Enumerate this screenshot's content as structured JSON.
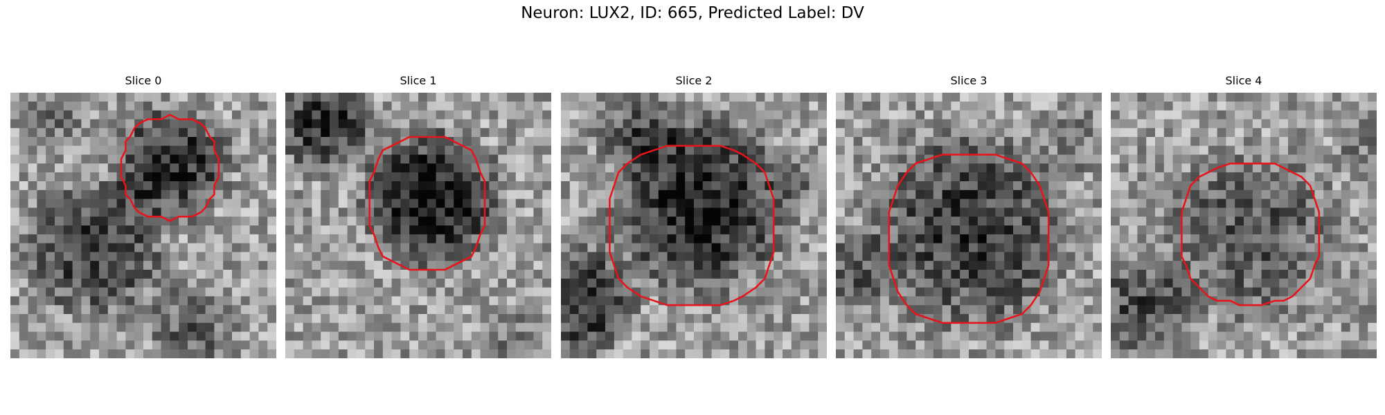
{
  "figure": {
    "title": "Neuron: LUX2, ID: 665, Predicted Label: DV"
  },
  "panels": [
    {
      "title": "Slice 0"
    },
    {
      "title": "Slice 1"
    },
    {
      "title": "Slice 2"
    },
    {
      "title": "Slice 3"
    },
    {
      "title": "Slice 4"
    }
  ],
  "colors": {
    "contour": "#e8141c",
    "colormap": "grayscale"
  }
}
